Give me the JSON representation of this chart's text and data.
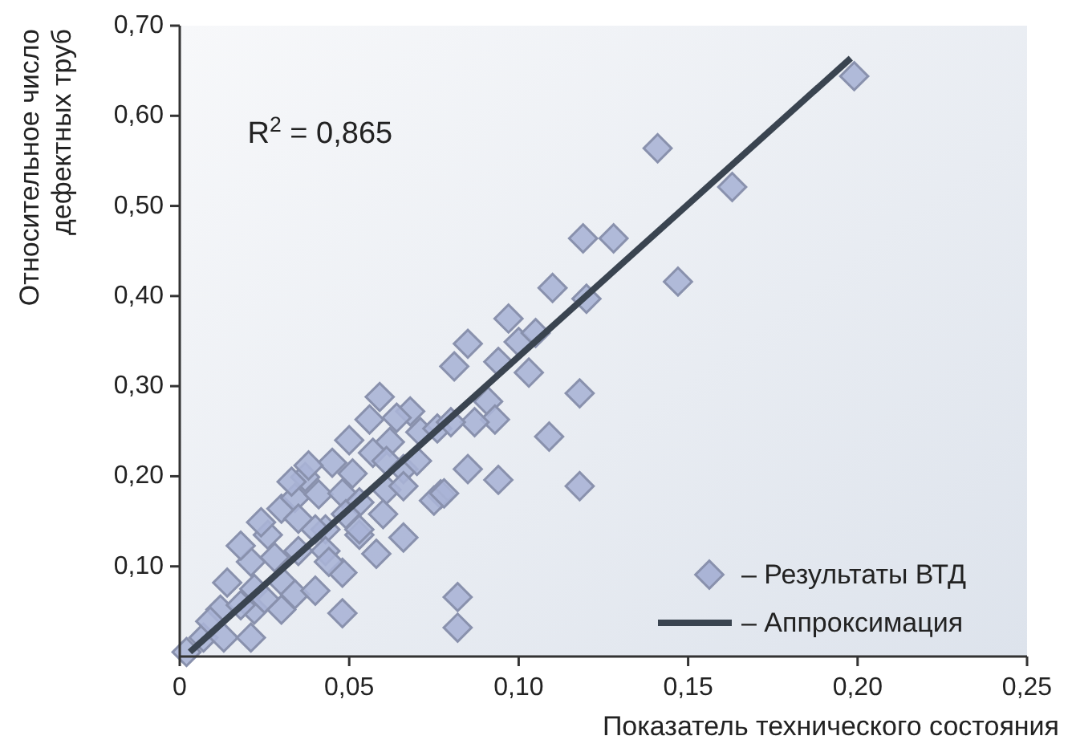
{
  "chart_data": {
    "type": "scatter",
    "xlabel": "Показатель технического состояния",
    "ylabel": "Относительное число\nдефектных труб",
    "annotations": [
      "R$^{2}$ = 0,865"
    ],
    "xlim": [
      0,
      0.25
    ],
    "ylim": [
      0,
      0.7
    ],
    "xticks": [
      {
        "value": 0,
        "label": "0"
      },
      {
        "value": 0.05,
        "label": "0,05"
      },
      {
        "value": 0.1,
        "label": "0,10"
      },
      {
        "value": 0.15,
        "label": "0,15"
      },
      {
        "value": 0.2,
        "label": "0,20"
      },
      {
        "value": 0.25,
        "label": "0,25"
      }
    ],
    "yticks": [
      {
        "value": 0.1,
        "label": "0,10"
      },
      {
        "value": 0.2,
        "label": "0,20"
      },
      {
        "value": 0.3,
        "label": "0,30"
      },
      {
        "value": 0.4,
        "label": "0,40"
      },
      {
        "value": 0.5,
        "label": "0,50"
      },
      {
        "value": 0.6,
        "label": "0,60"
      },
      {
        "value": 0.7,
        "label": "0,70"
      }
    ],
    "grid": false,
    "legend": "bottom right",
    "series": [
      {
        "name": "– Результаты ВТД",
        "marker": "diamond",
        "color": "#aab4d6",
        "x": [
          0.059,
          0.056,
          0.068,
          0.064,
          0.05,
          0.062,
          0.071,
          0.076,
          0.037,
          0.045,
          0.051,
          0.057,
          0.061,
          0.066,
          0.07,
          0.077,
          0.03,
          0.034,
          0.041,
          0.048,
          0.053,
          0.061,
          0.066,
          0.026,
          0.035,
          0.043,
          0.049,
          0.053,
          0.021,
          0.028,
          0.035,
          0.043,
          0.048,
          0.058,
          0.066,
          0.014,
          0.022,
          0.03,
          0.034,
          0.04,
          0.03,
          0.022,
          0.012,
          0.048,
          0.007,
          0.013,
          0.002,
          0.021,
          0.009,
          0.018,
          0.025,
          0.075,
          0.038,
          0.033,
          0.024,
          0.018,
          0.04,
          0.044,
          0.053,
          0.06,
          0.199,
          0.141,
          0.163,
          0.119,
          0.128,
          0.147,
          0.11,
          0.12,
          0.097,
          0.1,
          0.105,
          0.085,
          0.094,
          0.103,
          0.081,
          0.118,
          0.091,
          0.093,
          0.087,
          0.08,
          0.109,
          0.085,
          0.094,
          0.118,
          0.078,
          0.082,
          0.082
        ],
        "values": [
          0.288,
          0.263,
          0.272,
          0.265,
          0.24,
          0.238,
          0.249,
          0.253,
          0.199,
          0.215,
          0.203,
          0.226,
          0.217,
          0.208,
          0.217,
          0.18,
          0.164,
          0.176,
          0.18,
          0.181,
          0.171,
          0.185,
          0.189,
          0.135,
          0.153,
          0.141,
          0.158,
          0.135,
          0.105,
          0.11,
          0.117,
          0.117,
          0.093,
          0.114,
          0.132,
          0.082,
          0.075,
          0.084,
          0.069,
          0.073,
          0.052,
          0.052,
          0.052,
          0.048,
          0.021,
          0.021,
          0.005,
          0.021,
          0.039,
          0.057,
          0.064,
          0.173,
          0.212,
          0.194,
          0.149,
          0.123,
          0.141,
          0.105,
          0.141,
          0.158,
          0.644,
          0.564,
          0.521,
          0.464,
          0.464,
          0.416,
          0.409,
          0.397,
          0.375,
          0.349,
          0.359,
          0.347,
          0.327,
          0.315,
          0.322,
          0.292,
          0.283,
          0.263,
          0.26,
          0.26,
          0.244,
          0.208,
          0.196,
          0.189,
          0.181,
          0.066,
          0.032
        ]
      },
      {
        "name": "– Аппроксимация",
        "type": "line",
        "marker": "none",
        "line_style": "solid",
        "color": "#3a4450",
        "x": [
          0.003,
          0.198
        ],
        "values": [
          0.005,
          0.664
        ]
      }
    ]
  }
}
